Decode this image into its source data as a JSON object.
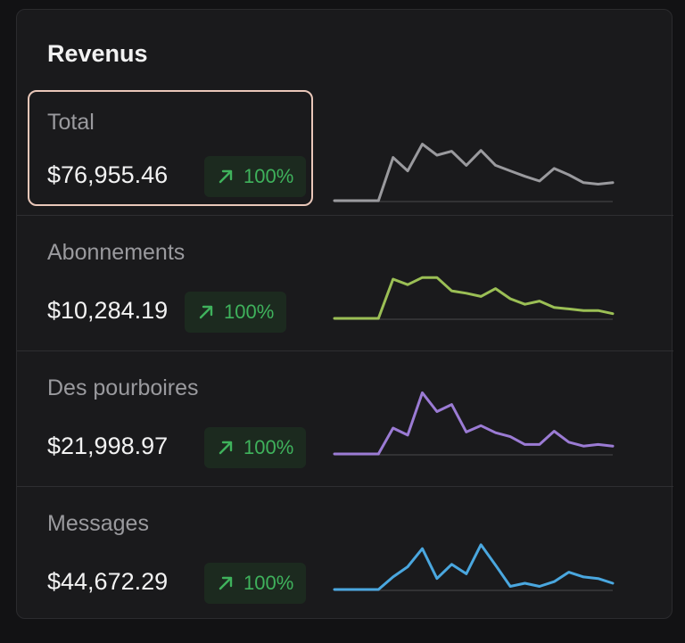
{
  "card": {
    "title": "Revenus"
  },
  "rows": [
    {
      "label": "Total",
      "amount": "$76,955.46",
      "change": "100%",
      "icon": "arrow-up-right-icon",
      "color": "#9a9a9e",
      "trend": [
        0,
        0,
        0,
        0,
        0.55,
        0.38,
        0.72,
        0.58,
        0.63,
        0.45,
        0.64,
        0.45,
        0.38,
        0.31,
        0.25,
        0.41,
        0.33,
        0.23,
        0.21,
        0.23
      ]
    },
    {
      "label": "Abonnements",
      "amount": "$10,284.19",
      "change": "100%",
      "icon": "arrow-up-right-icon",
      "color": "#9bbf55",
      "trend": [
        0,
        0,
        0,
        0,
        0.5,
        0.43,
        0.52,
        0.52,
        0.35,
        0.32,
        0.28,
        0.38,
        0.25,
        0.18,
        0.22,
        0.14,
        0.12,
        0.1,
        0.1,
        0.06
      ]
    },
    {
      "label": "Des pourboires",
      "amount": "$21,998.97",
      "change": "100%",
      "icon": "arrow-up-right-icon",
      "color": "#9b7bd4",
      "trend": [
        0,
        0,
        0,
        0,
        0.33,
        0.24,
        0.78,
        0.54,
        0.63,
        0.28,
        0.36,
        0.27,
        0.22,
        0.12,
        0.12,
        0.29,
        0.15,
        0.1,
        0.12,
        0.1
      ]
    },
    {
      "label": "Messages",
      "amount": "$44,672.29",
      "change": "100%",
      "icon": "arrow-up-right-icon",
      "color": "#4aa7df",
      "trend": [
        0,
        0,
        0,
        0,
        0.16,
        0.29,
        0.52,
        0.14,
        0.32,
        0.2,
        0.57,
        0.31,
        0.04,
        0.08,
        0.04,
        0.1,
        0.22,
        0.16,
        0.14,
        0.08
      ]
    }
  ]
}
